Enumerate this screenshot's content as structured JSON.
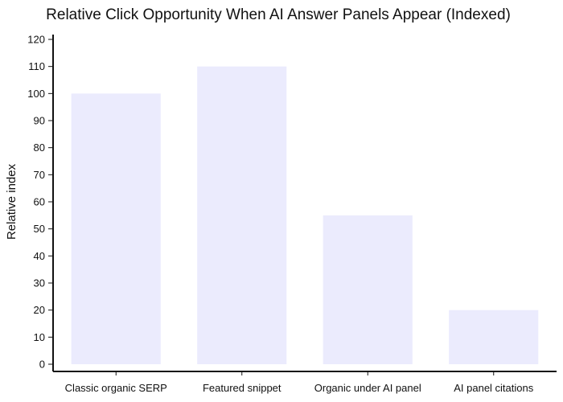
{
  "chart_data": {
    "type": "bar",
    "title": "Relative Click Opportunity When AI Answer Panels Appear (Indexed)",
    "xlabel": "",
    "ylabel": "Relative index",
    "categories": [
      "Classic organic SERP",
      "Featured snippet",
      "Organic under AI panel",
      "AI panel citations"
    ],
    "values": [
      100,
      110,
      55,
      20
    ],
    "ylim": [
      0,
      120
    ],
    "yticks": [
      0,
      10,
      20,
      30,
      40,
      50,
      60,
      70,
      80,
      90,
      100,
      110,
      120
    ],
    "bar_color": "#ebebfd",
    "axis_color": "#111111",
    "grid": false,
    "legend": "none"
  }
}
